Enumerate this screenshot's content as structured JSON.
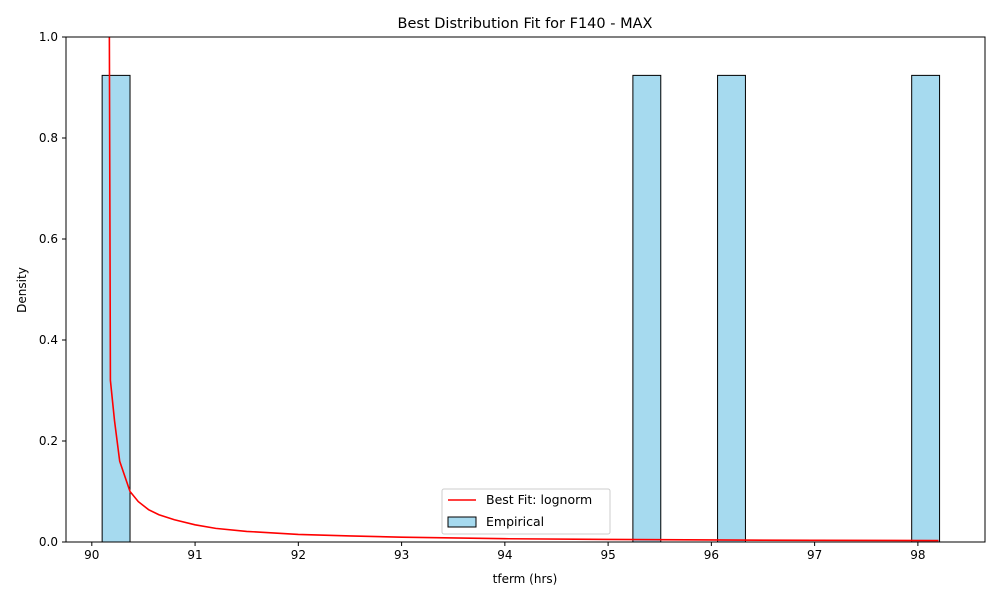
{
  "chart_data": {
    "type": "bar",
    "title": "Best Distribution Fit for F140 - MAX",
    "xlabel": "tferm (hrs)",
    "ylabel": "Density",
    "xlim": [
      89.75,
      98.65
    ],
    "ylim": [
      0,
      1.0
    ],
    "xticks": [
      "90",
      "91",
      "92",
      "93",
      "94",
      "95",
      "96",
      "97",
      "98"
    ],
    "yticks": [
      "0.0",
      "0.2",
      "0.4",
      "0.6",
      "0.8",
      "1.0"
    ],
    "legend_position": "lower-center",
    "series": [
      {
        "name": "Best Fit: lognorm",
        "kind": "line",
        "color": "#ff0000",
        "points": [
          [
            90.17,
            1.0
          ],
          [
            90.18,
            0.32
          ],
          [
            90.22,
            0.24
          ],
          [
            90.27,
            0.16
          ],
          [
            90.32,
            0.13
          ],
          [
            90.37,
            0.1
          ],
          [
            90.45,
            0.08
          ],
          [
            90.55,
            0.064
          ],
          [
            90.65,
            0.054
          ],
          [
            90.8,
            0.044
          ],
          [
            91.0,
            0.034
          ],
          [
            91.2,
            0.027
          ],
          [
            91.5,
            0.021
          ],
          [
            92.0,
            0.015
          ],
          [
            92.5,
            0.012
          ],
          [
            93.0,
            0.0095
          ],
          [
            94.0,
            0.0065
          ],
          [
            95.0,
            0.005
          ],
          [
            96.0,
            0.004
          ],
          [
            97.0,
            0.0033
          ],
          [
            98.2,
            0.0028
          ]
        ]
      },
      {
        "name": "Empirical",
        "kind": "histogram",
        "color": "#a6daef",
        "edgecolor": "#000000",
        "bars": [
          {
            "x0": 90.1,
            "x1": 90.37,
            "value": 0.924
          },
          {
            "x0": 95.24,
            "x1": 95.51,
            "value": 0.924
          },
          {
            "x0": 96.06,
            "x1": 96.33,
            "value": 0.924
          },
          {
            "x0": 97.94,
            "x1": 98.21,
            "value": 0.924
          }
        ]
      }
    ]
  }
}
